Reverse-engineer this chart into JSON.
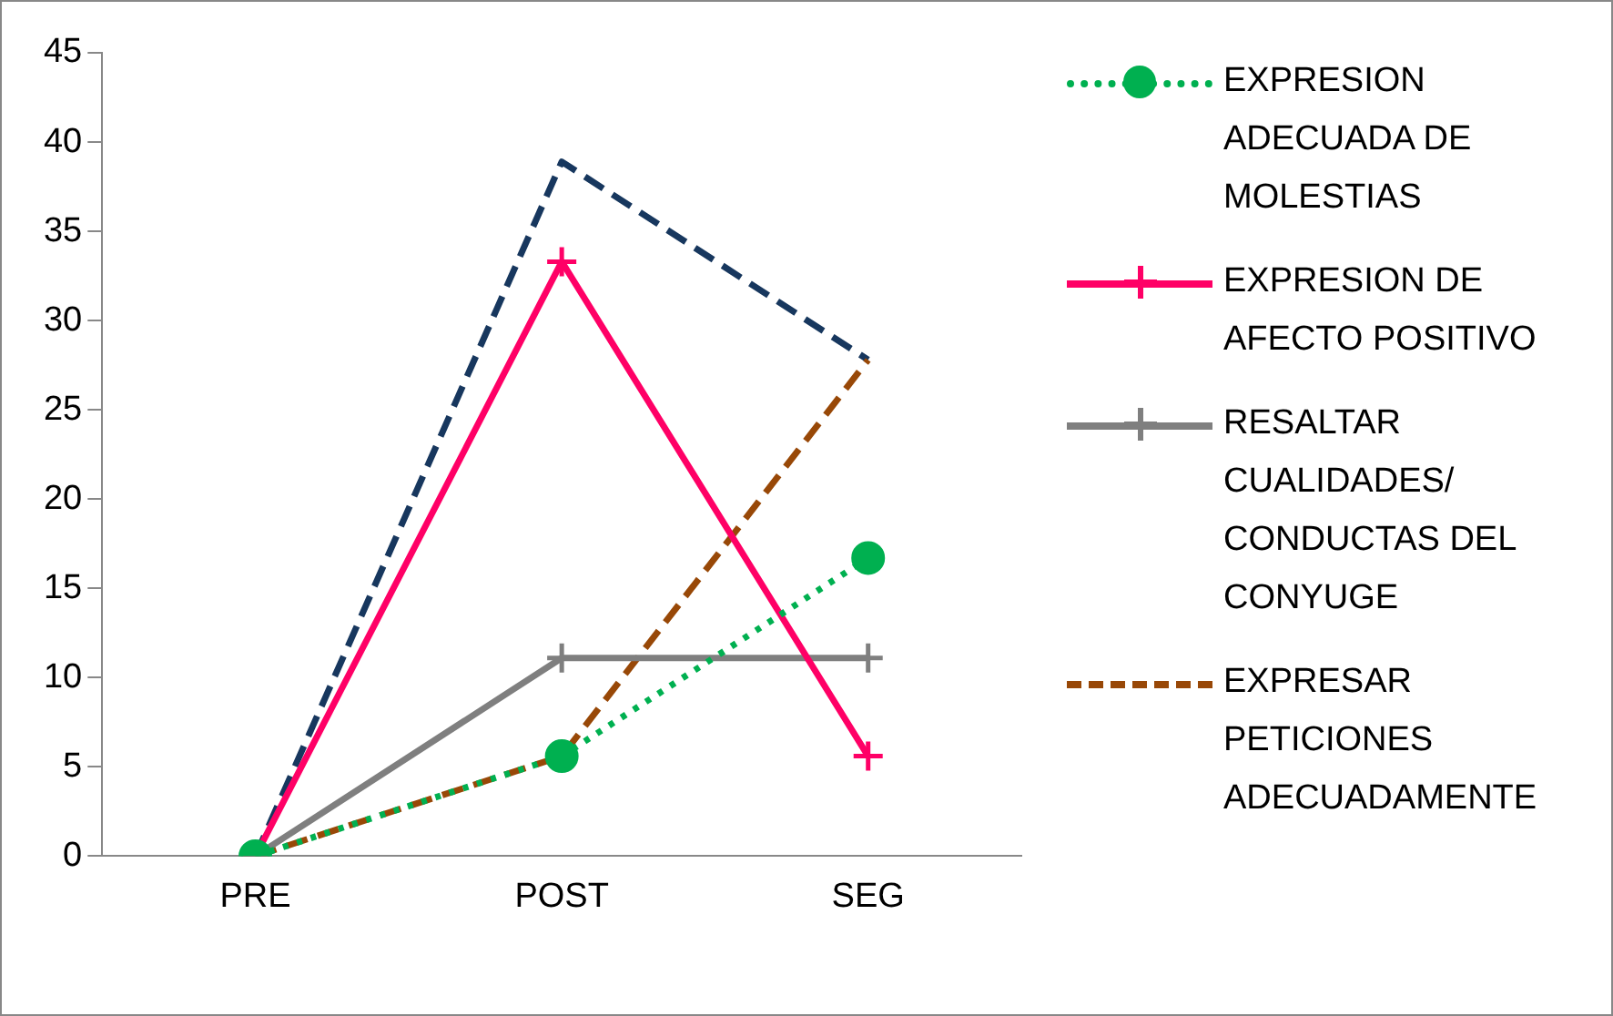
{
  "chart_data": {
    "type": "line",
    "categories": [
      "PRE",
      "POST",
      "SEG"
    ],
    "series": [
      {
        "name": "EXPRESION ADECUADA DE MOLESTIAS",
        "color": "#00b050",
        "values": [
          0,
          5.6,
          16.7
        ],
        "marker": "circle",
        "line_style": "dotted"
      },
      {
        "name": "EXPRESION DE AFECTO POSITIVO",
        "color": "#ff0066",
        "values": [
          0,
          33.3,
          5.6
        ],
        "marker": "cross",
        "line_style": "solid"
      },
      {
        "name": "RESALTAR CUALIDADES/ CONDUCTAS DEL CONYUGE",
        "color": "#7f7f7f",
        "values": [
          0,
          11.1,
          11.1
        ],
        "marker": "cross",
        "line_style": "solid"
      },
      {
        "name": "EXPRESAR PETICIONES ADECUADAMENTE",
        "color": "#984807",
        "values": [
          0,
          5.6,
          27.8
        ],
        "marker": "none",
        "line_style": "dashed"
      },
      {
        "color": "#17375e",
        "values": [
          0,
          38.9,
          27.8
        ],
        "marker": "none",
        "line_style": "dashed"
      }
    ],
    "ylim": [
      0,
      45
    ],
    "yticks": [
      0,
      5,
      10,
      15,
      20,
      25,
      30,
      35,
      40,
      45
    ],
    "grid": false,
    "legend": "right"
  }
}
